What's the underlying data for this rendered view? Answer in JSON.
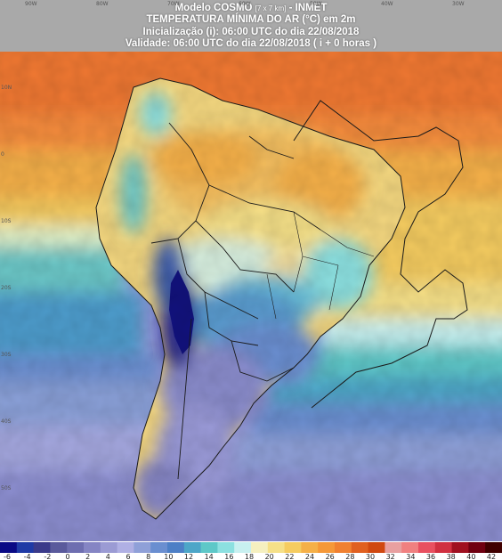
{
  "header": {
    "line1_main": "Modelo COSMO",
    "line1_small": "[7 x 7 km]",
    "line1_suffix": "- INMET",
    "line2": "TEMPERATURA MÍNIMA DO AR (°C) em 2m",
    "line3": "Inicialização (i): 06:00 UTC do dia 22/08/2018",
    "line4": "Validade: 06:00 UTC do dia 22/08/2018 ( i + 0 horas )"
  },
  "coords": {
    "top": [
      "90W",
      "80W",
      "70W",
      "60W",
      "50W",
      "40W",
      "30W"
    ],
    "left": [
      "10N",
      "0",
      "10S",
      "20S",
      "30S",
      "40S",
      "50S"
    ]
  },
  "map_data": {
    "variable": "Temperatura mínima do ar a 2 m",
    "unit": "°C",
    "lon_range": [
      -95,
      -25
    ],
    "lat_range": [
      -57,
      18
    ],
    "regions": [
      {
        "name": "Caribbean / northern ocean",
        "value": 28
      },
      {
        "name": "Equatorial Atlantic",
        "value": 28
      },
      {
        "name": "Amazon",
        "value": 22
      },
      {
        "name": "Central Brazil",
        "value": 18
      },
      {
        "name": "Andes high plateau",
        "value": -6
      },
      {
        "name": "Southern Brazil",
        "value": 10
      },
      {
        "name": "Patagonia",
        "value": 2
      },
      {
        "name": "Southern Pacific",
        "value": 8
      },
      {
        "name": "South Atlantic",
        "value": 12
      }
    ]
  },
  "legend": {
    "colors": [
      "#0a0a85",
      "#1f3aa6",
      "#3a3a8a",
      "#5a5a9c",
      "#6e6eb0",
      "#8585c4",
      "#9b9bd4",
      "#b0b0e4",
      "#8fa0d8",
      "#6a8ed0",
      "#4d7fc6",
      "#4da6c8",
      "#5ec8c8",
      "#8ce0e0",
      "#c8f0f0",
      "#f5f0c0",
      "#f5e088",
      "#f5cc60",
      "#f5b048",
      "#f59838",
      "#f08030",
      "#e06020",
      "#d04810",
      "#e8a0a0",
      "#f08080",
      "#e85060",
      "#d03040",
      "#a01020",
      "#700010",
      "#400000"
    ],
    "labels": [
      "-6",
      "-4",
      "-2",
      "0",
      "2",
      "4",
      "6",
      "8",
      "10",
      "12",
      "14",
      "16",
      "18",
      "20",
      "22",
      "24",
      "26",
      "28",
      "30",
      "32",
      "34",
      "36",
      "38",
      "40",
      "42"
    ]
  }
}
